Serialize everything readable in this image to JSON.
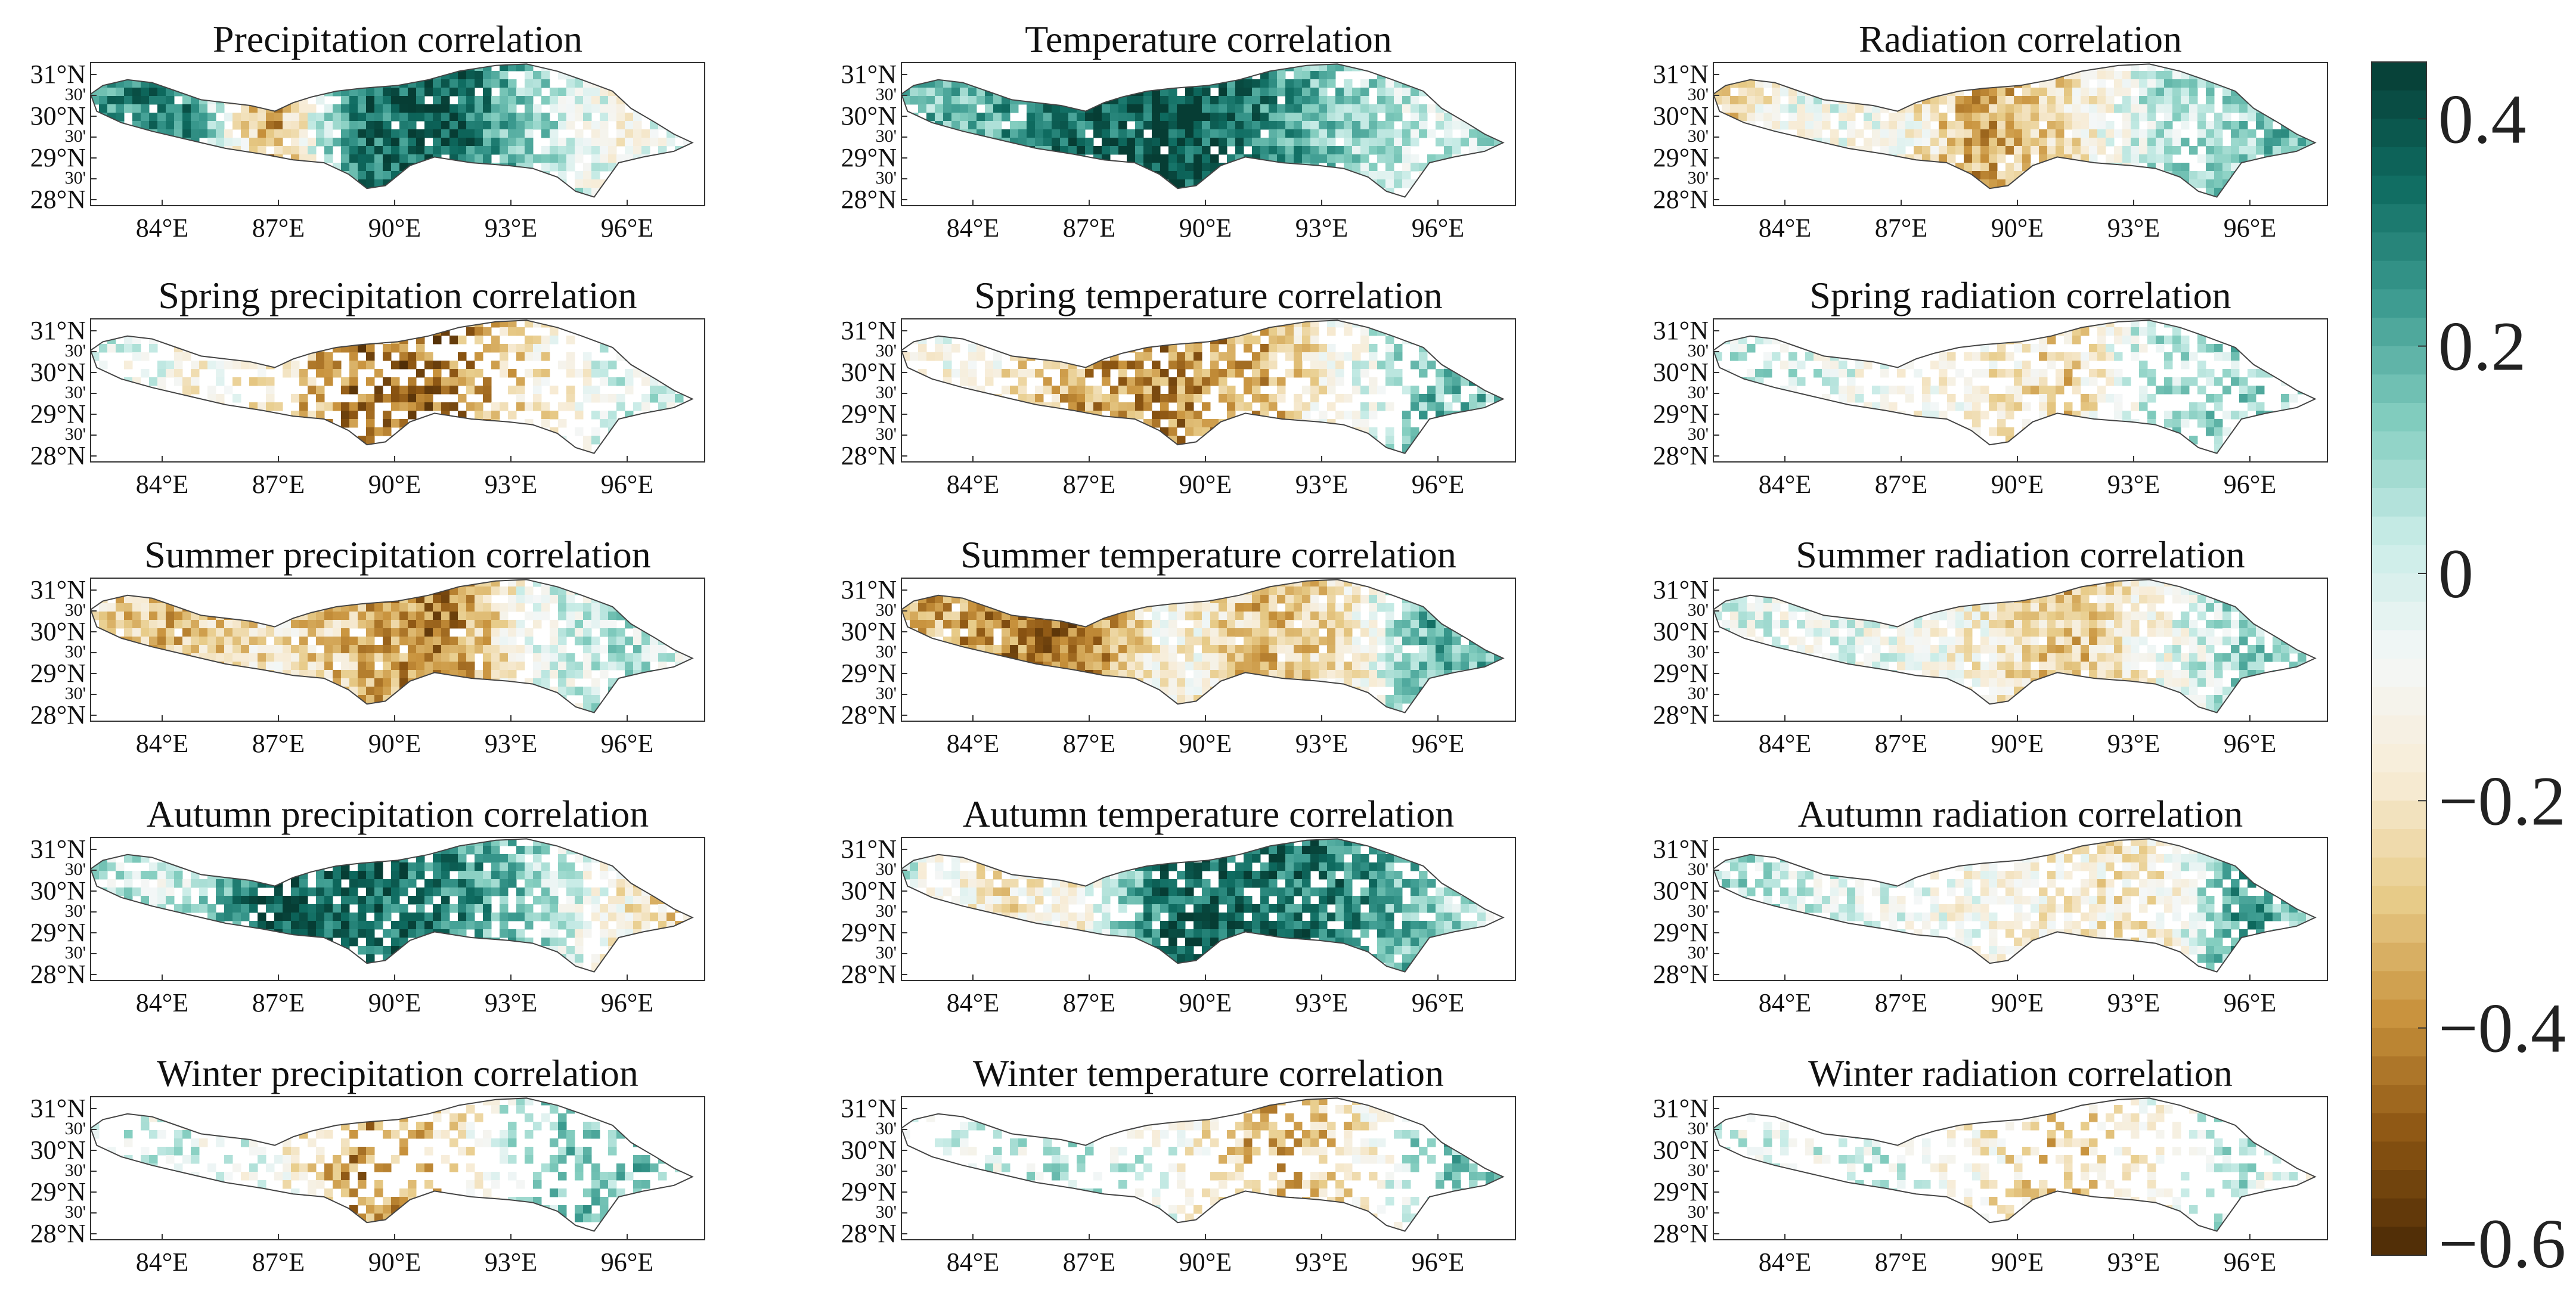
{
  "figure": {
    "colormap": {
      "name": "BrBG",
      "range": [
        -0.6,
        0.45
      ],
      "colors": [
        "#4a2a06",
        "#8c5512",
        "#c8923c",
        "#e8cc8a",
        "#f7ecd6",
        "#f4f7f7",
        "#c9ece7",
        "#83cdbf",
        "#3c9b90",
        "#0e6b60",
        "#063d34"
      ],
      "ticks": [
        {
          "value": 0.4,
          "label": "0.4"
        },
        {
          "value": 0.2,
          "label": "0.2"
        },
        {
          "value": 0.0,
          "label": "0"
        },
        {
          "value": -0.2,
          "label": "−0.2"
        },
        {
          "value": -0.4,
          "label": "−0.4"
        },
        {
          "value": -0.6,
          "label": "−0.6"
        }
      ]
    },
    "lat_labels": [
      "31°N",
      "30'",
      "30°N",
      "30'",
      "29°N",
      "30'",
      "28°N"
    ],
    "lon_labels": [
      "84°E",
      "87°E",
      "90°E",
      "93°E",
      "96°E"
    ],
    "panels": [
      {
        "title": "Precipitation correlation",
        "pattern": [
          0.25,
          0.3,
          -0.4,
          0.3,
          0.4,
          0.1,
          -0.1,
          0.05
        ],
        "coverage": 0.95
      },
      {
        "title": "Temperature correlation",
        "pattern": [
          0.15,
          0.2,
          0.35,
          0.4,
          0.3,
          0.1,
          0.0,
          0.05
        ],
        "coverage": 0.95
      },
      {
        "title": "Radiation correlation",
        "pattern": [
          -0.3,
          -0.05,
          -0.1,
          -0.35,
          -0.2,
          0.05,
          0.1,
          0.2
        ],
        "coverage": 0.95
      },
      {
        "title": "Spring precipitation correlation",
        "pattern": [
          0.0,
          -0.1,
          -0.2,
          -0.45,
          -0.45,
          -0.2,
          0.0,
          0.0
        ],
        "coverage": 0.6
      },
      {
        "title": "Spring temperature correlation",
        "pattern": [
          -0.05,
          -0.15,
          -0.35,
          -0.4,
          -0.35,
          -0.1,
          0.15,
          0.15
        ],
        "coverage": 0.7
      },
      {
        "title": "Spring radiation correlation",
        "pattern": [
          0.05,
          0.0,
          -0.1,
          -0.15,
          -0.25,
          0.05,
          0.1,
          0.05
        ],
        "coverage": 0.6
      },
      {
        "title": "Summer precipitation correlation",
        "pattern": [
          -0.25,
          -0.3,
          -0.2,
          -0.3,
          -0.45,
          -0.05,
          0.05,
          0.0
        ],
        "coverage": 0.95
      },
      {
        "title": "Summer temperature correlation",
        "pattern": [
          -0.3,
          -0.4,
          -0.45,
          -0.1,
          -0.3,
          -0.2,
          0.2,
          0.15
        ],
        "coverage": 0.95
      },
      {
        "title": "Summer radiation correlation",
        "pattern": [
          0.0,
          -0.05,
          -0.05,
          -0.15,
          -0.3,
          -0.1,
          0.1,
          0.0
        ],
        "coverage": 0.95
      },
      {
        "title": "Autumn precipitation correlation",
        "pattern": [
          0.05,
          0.0,
          0.4,
          0.35,
          0.3,
          0.1,
          -0.15,
          -0.3
        ],
        "coverage": 0.85
      },
      {
        "title": "Autumn temperature correlation",
        "pattern": [
          0.0,
          -0.2,
          -0.15,
          0.35,
          0.35,
          0.3,
          0.1,
          0.0
        ],
        "coverage": 0.85
      },
      {
        "title": "Autumn radiation correlation",
        "pattern": [
          0.1,
          0.0,
          -0.05,
          -0.1,
          -0.15,
          -0.2,
          0.25,
          0.05
        ],
        "coverage": 0.8
      },
      {
        "title": "Winter precipitation correlation",
        "pattern": [
          0.0,
          0.0,
          -0.05,
          -0.4,
          -0.25,
          0.1,
          0.15,
          0.1
        ],
        "coverage": 0.45
      },
      {
        "title": "Winter temperature correlation",
        "pattern": [
          0.0,
          0.0,
          0.05,
          -0.05,
          -0.35,
          -0.25,
          0.15,
          0.2
        ],
        "coverage": 0.5
      },
      {
        "title": "Winter radiation correlation",
        "pattern": [
          0.0,
          0.0,
          0.0,
          -0.15,
          -0.3,
          -0.1,
          0.05,
          -0.15
        ],
        "coverage": 0.45
      }
    ]
  }
}
